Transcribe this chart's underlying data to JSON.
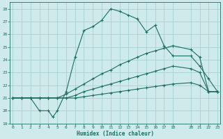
{
  "xlabel": "Humidex (Indice chaleur)",
  "bg_color": "#ceeaea",
  "grid_color": "#a8d0d0",
  "line_color": "#1a6e5e",
  "xlim": [
    0,
    23
  ],
  "ylim": [
    19,
    28.5
  ],
  "xticks": [
    0,
    1,
    2,
    3,
    4,
    5,
    6,
    7,
    8,
    9,
    10,
    11,
    12,
    13,
    14,
    15,
    16,
    17,
    18,
    20,
    21,
    22,
    23
  ],
  "yticks": [
    19,
    20,
    21,
    22,
    23,
    24,
    25,
    26,
    27,
    28
  ],
  "curve1_x": [
    0,
    1,
    2,
    3,
    4,
    4.5,
    5,
    6,
    7,
    8,
    9,
    10,
    11,
    12,
    13,
    14,
    15,
    16,
    17,
    18,
    20,
    21,
    22,
    23
  ],
  "curve1_y": [
    21.0,
    21.0,
    21.0,
    20.0,
    20.0,
    19.5,
    20.0,
    21.5,
    24.2,
    26.3,
    26.6,
    27.1,
    28.0,
    27.8,
    27.5,
    27.2,
    26.2,
    26.7,
    25.1,
    24.3,
    24.3,
    23.5,
    22.5,
    21.5
  ],
  "curve2_x": [
    0,
    1,
    2,
    3,
    4,
    5,
    6,
    7,
    8,
    9,
    10,
    11,
    12,
    13,
    14,
    15,
    16,
    17,
    18,
    20,
    21,
    22,
    23
  ],
  "curve2_y": [
    21.0,
    21.0,
    21.0,
    21.0,
    21.0,
    21.0,
    21.3,
    21.7,
    22.1,
    22.5,
    22.9,
    23.2,
    23.6,
    23.9,
    24.2,
    24.5,
    24.7,
    24.9,
    25.1,
    24.8,
    24.2,
    21.5,
    21.5
  ],
  "curve3_x": [
    0,
    1,
    2,
    3,
    4,
    5,
    6,
    7,
    8,
    9,
    10,
    11,
    12,
    13,
    14,
    15,
    16,
    17,
    18,
    20,
    21,
    22,
    23
  ],
  "curve3_y": [
    21.0,
    21.0,
    21.0,
    21.0,
    21.0,
    21.0,
    21.0,
    21.2,
    21.5,
    21.7,
    21.9,
    22.1,
    22.3,
    22.5,
    22.7,
    22.9,
    23.1,
    23.3,
    23.5,
    23.3,
    23.0,
    21.5,
    21.5
  ],
  "curve4_x": [
    0,
    1,
    2,
    3,
    4,
    5,
    6,
    7,
    8,
    9,
    10,
    11,
    12,
    13,
    14,
    15,
    16,
    17,
    18,
    20,
    21,
    22,
    23
  ],
  "curve4_y": [
    21.0,
    21.0,
    21.0,
    21.0,
    21.0,
    21.0,
    21.0,
    21.0,
    21.1,
    21.2,
    21.3,
    21.4,
    21.5,
    21.6,
    21.7,
    21.8,
    21.9,
    22.0,
    22.1,
    22.2,
    22.0,
    21.5,
    21.5
  ]
}
